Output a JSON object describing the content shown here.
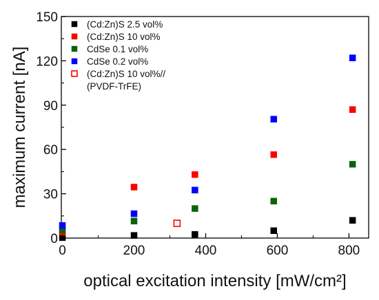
{
  "chart_data": {
    "type": "scatter",
    "xlabel": "optical excitation intensity [mW/cm²]",
    "ylabel": "maximum current [nA]",
    "xlim": [
      -3,
      855
    ],
    "ylim": [
      0,
      150
    ],
    "xticks": [
      0,
      200,
      400,
      600,
      800
    ],
    "yticks": [
      0,
      30,
      60,
      90,
      120,
      150
    ],
    "grid": false,
    "legend_position": "top-left",
    "series": [
      {
        "name": "(Cd:Zn)S 2.5 vol%",
        "color": "#000000",
        "marker": "square-filled",
        "x": [
          0,
          200,
          370,
          590,
          810
        ],
        "y": [
          0.3,
          1.8,
          2.5,
          5,
          12
        ]
      },
      {
        "name": "(Cd:Zn)S 10 vol%",
        "color": "#ff0000",
        "marker": "square-filled",
        "x": [
          0,
          200,
          370,
          590,
          810
        ],
        "y": [
          4,
          34.5,
          43,
          56.5,
          87
        ]
      },
      {
        "name": "CdSe 0.1 vol%",
        "color": "#0a640a",
        "marker": "square-filled",
        "x": [
          0,
          200,
          370,
          590,
          810
        ],
        "y": [
          5.5,
          11.5,
          20,
          25,
          50
        ]
      },
      {
        "name": "CdSe 0.2 vol%",
        "color": "#0000ff",
        "marker": "square-filled",
        "x": [
          0,
          200,
          370,
          590,
          810
        ],
        "y": [
          8.5,
          16.5,
          32.5,
          80.5,
          122
        ]
      },
      {
        "name": "(Cd:Zn)S 10 vol%//",
        "name_line2": "(PVDF-TrFE)",
        "color": "#ff0000",
        "marker": "square-open",
        "x": [
          320
        ],
        "y": [
          10
        ]
      }
    ]
  }
}
